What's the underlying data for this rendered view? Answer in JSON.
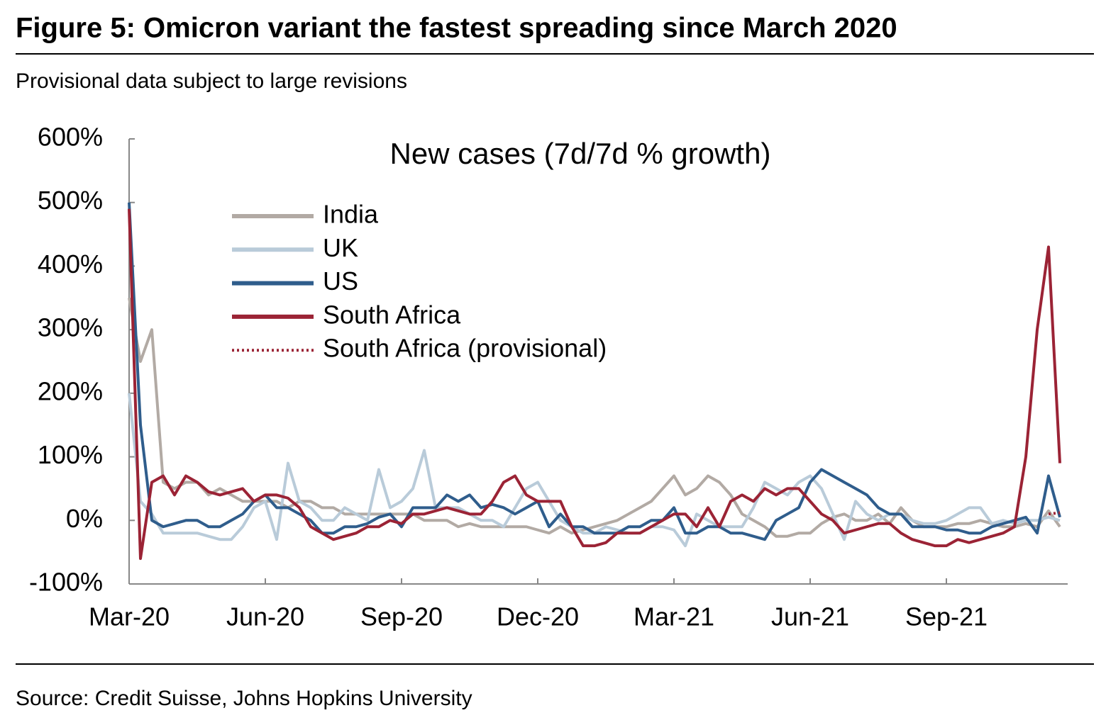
{
  "chart_data": {
    "type": "line",
    "title": "Figure 5: Omicron variant the fastest spreading since March 2020",
    "subtitle": "Provisional data subject to large revisions",
    "annotation": "New cases (7d/7d % growth)",
    "source": "Source: Credit Suisse, Johns Hopkins University",
    "categories": [
      "Mar-20",
      null,
      null,
      null,
      null,
      null,
      null,
      null,
      null,
      null,
      null,
      null,
      "Jun-20",
      null,
      null,
      null,
      null,
      null,
      null,
      null,
      null,
      null,
      null,
      null,
      "Sep-20",
      null,
      null,
      null,
      null,
      null,
      null,
      null,
      null,
      null,
      null,
      null,
      "Dec-20",
      null,
      null,
      null,
      null,
      null,
      null,
      null,
      null,
      null,
      null,
      null,
      "Mar-21",
      null,
      null,
      null,
      null,
      null,
      null,
      null,
      null,
      null,
      null,
      null,
      "Jun-21",
      null,
      null,
      null,
      null,
      null,
      null,
      null,
      null,
      null,
      null,
      null,
      "Sep-21",
      null,
      null,
      null,
      null,
      null,
      null,
      null,
      null,
      null,
      null
    ],
    "ylim": [
      -100,
      600
    ],
    "yticks": [
      {
        "value": -100,
        "label": "-100%"
      },
      {
        "value": 0,
        "label": "0%"
      },
      {
        "value": 100,
        "label": "100%"
      },
      {
        "value": 200,
        "label": "200%"
      },
      {
        "value": 300,
        "label": "300%"
      },
      {
        "value": 400,
        "label": "400%"
      },
      {
        "value": 500,
        "label": "500%"
      },
      {
        "value": 600,
        "label": "600%"
      }
    ],
    "legend": "upper left",
    "series": [
      {
        "name": "India",
        "color": "#b2aaa4",
        "style": "solid",
        "values": [
          350,
          250,
          300,
          60,
          50,
          60,
          60,
          40,
          50,
          40,
          30,
          30,
          30,
          30,
          20,
          30,
          30,
          20,
          20,
          10,
          10,
          10,
          10,
          10,
          10,
          10,
          0,
          0,
          0,
          -10,
          -5,
          -10,
          -10,
          -10,
          -10,
          -10,
          -15,
          -20,
          -10,
          -20,
          -15,
          -10,
          -5,
          0,
          10,
          20,
          30,
          50,
          70,
          40,
          50,
          70,
          60,
          40,
          10,
          0,
          -10,
          -25,
          -25,
          -20,
          -20,
          -5,
          5,
          10,
          0,
          0,
          10,
          -5,
          20,
          0,
          -10,
          -10,
          -10,
          -5,
          -5,
          0,
          -5,
          -10,
          -10,
          -5,
          -10,
          15,
          -10
        ]
      },
      {
        "name": "UK",
        "color": "#b9cbd9",
        "style": "solid",
        "values": [
          200,
          30,
          10,
          -20,
          -20,
          -20,
          -20,
          -25,
          -30,
          -30,
          -10,
          20,
          30,
          -30,
          90,
          30,
          20,
          0,
          0,
          20,
          10,
          0,
          80,
          20,
          30,
          50,
          110,
          20,
          20,
          20,
          10,
          0,
          0,
          -10,
          20,
          50,
          60,
          30,
          0,
          -10,
          -20,
          -20,
          -10,
          -15,
          -20,
          -20,
          -10,
          -10,
          -15,
          -40,
          10,
          0,
          -10,
          -10,
          -10,
          20,
          60,
          50,
          40,
          60,
          70,
          50,
          10,
          -30,
          30,
          10,
          0,
          10,
          10,
          0,
          -5,
          -5,
          0,
          10,
          20,
          20,
          -5,
          0,
          -5,
          0,
          0,
          5,
          0
        ]
      },
      {
        "name": "US",
        "color": "#2f5d8c",
        "style": "solid",
        "values": [
          500,
          150,
          0,
          -10,
          -5,
          0,
          0,
          -10,
          -10,
          0,
          10,
          30,
          40,
          20,
          20,
          10,
          0,
          -20,
          -20,
          -10,
          -10,
          -5,
          5,
          10,
          -10,
          20,
          20,
          20,
          40,
          30,
          40,
          20,
          25,
          20,
          10,
          20,
          30,
          -10,
          10,
          -10,
          -10,
          -20,
          -20,
          -20,
          -10,
          -10,
          0,
          0,
          20,
          -20,
          -20,
          -10,
          -10,
          -20,
          -20,
          -25,
          -30,
          0,
          10,
          20,
          60,
          80,
          70,
          60,
          50,
          40,
          20,
          10,
          10,
          -10,
          -10,
          -10,
          -15,
          -15,
          -20,
          -20,
          -10,
          -5,
          0,
          5,
          -20,
          70,
          5
        ]
      },
      {
        "name": "South Africa",
        "color": "#9b2335",
        "style": "solid",
        "values": [
          490,
          -60,
          60,
          70,
          40,
          70,
          60,
          45,
          40,
          45,
          50,
          30,
          40,
          40,
          35,
          20,
          -10,
          -20,
          -30,
          -25,
          -20,
          -10,
          -10,
          0,
          -5,
          10,
          10,
          15,
          20,
          15,
          10,
          10,
          30,
          60,
          70,
          40,
          30,
          30,
          30,
          -10,
          -40,
          -40,
          -35,
          -20,
          -20,
          -20,
          -10,
          0,
          10,
          10,
          -10,
          20,
          -10,
          30,
          40,
          30,
          50,
          40,
          50,
          50,
          30,
          10,
          0,
          -20,
          -15,
          -10,
          -5,
          -5,
          -20,
          -30,
          -35,
          -40,
          -40,
          -30,
          -35,
          -30,
          -25,
          -20,
          -10,
          100,
          300,
          430,
          90
        ]
      },
      {
        "name": "South Africa (provisional)",
        "color": "#9b2335",
        "style": "dotted",
        "values": [
          null,
          null,
          null,
          null,
          null,
          null,
          null,
          null,
          null,
          null,
          null,
          null,
          null,
          null,
          null,
          null,
          null,
          null,
          null,
          null,
          null,
          null,
          null,
          null,
          null,
          null,
          null,
          null,
          null,
          null,
          null,
          null,
          null,
          null,
          null,
          null,
          null,
          null,
          null,
          null,
          null,
          null,
          null,
          null,
          null,
          null,
          null,
          null,
          null,
          null,
          null,
          null,
          null,
          null,
          null,
          null,
          null,
          null,
          null,
          null,
          null,
          null,
          null,
          null,
          null,
          null,
          null,
          null,
          null,
          null,
          null,
          null,
          null,
          null,
          null,
          null,
          null,
          null,
          null,
          null,
          null,
          10,
          12
        ]
      }
    ]
  }
}
